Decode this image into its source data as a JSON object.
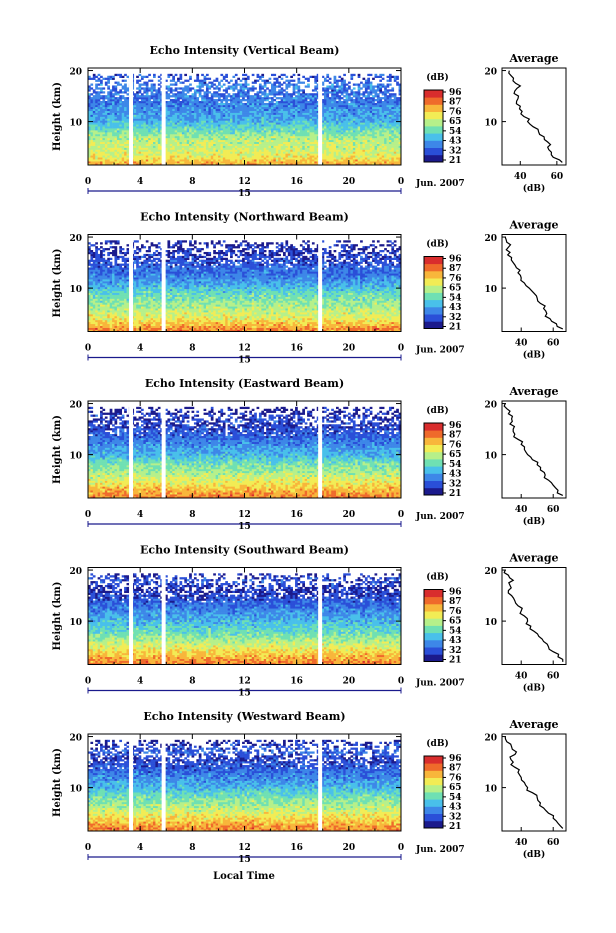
{
  "xlabel": "Local Time",
  "date_label": "Jun. 2007",
  "day_label": "15",
  "colorbar_unit": "(dB)",
  "colorbar_ticks": [
    "96",
    "87",
    "76",
    "65",
    "54",
    "43",
    "32",
    "21"
  ],
  "colormap": [
    "#1b1a8c",
    "#2a4fd8",
    "#3d87e8",
    "#49c0ea",
    "#6fe0b3",
    "#b6f08a",
    "#f2ec55",
    "#f8b63b",
    "#ef6a2b",
    "#d92d2d"
  ],
  "chart_data": [
    {
      "type": "heatmap",
      "title": "Echo Intensity (Vertical Beam)",
      "ylabel": "Height (km)",
      "x_ticks": [
        "0",
        "4",
        "8",
        "12",
        "16",
        "20",
        "0"
      ],
      "y_ticks": [
        "20",
        "10"
      ],
      "xlim": [
        0,
        24
      ],
      "ylim": [
        1.5,
        20.5
      ],
      "clim": [
        21,
        96
      ],
      "data_gaps_hours": [
        3.3,
        5.8,
        17.8
      ],
      "profile": {
        "title": "Average",
        "xlabel": "(dB)",
        "x_ticks": [
          "40",
          "60"
        ],
        "y_ticks": [
          "20",
          "10"
        ],
        "xlim": [
          30,
          65
        ],
        "heights_km": [
          2,
          3,
          4,
          5,
          6,
          7,
          8,
          9,
          10,
          11,
          12,
          13,
          14,
          15,
          16,
          17,
          18,
          19,
          20
        ],
        "values_db": [
          63,
          58,
          57,
          55,
          55,
          53,
          50,
          47,
          44,
          42,
          41,
          40,
          38,
          39,
          37,
          40,
          36,
          35,
          34
        ]
      }
    },
    {
      "type": "heatmap",
      "title": "Echo Intensity (Northward Beam)",
      "ylabel": "Height (km)",
      "x_ticks": [
        "0",
        "4",
        "8",
        "12",
        "16",
        "20",
        "0"
      ],
      "y_ticks": [
        "20",
        "10"
      ],
      "xlim": [
        0,
        24
      ],
      "ylim": [
        1.5,
        20.5
      ],
      "clim": [
        21,
        96
      ],
      "data_gaps_hours": [
        3.3,
        5.8,
        17.8
      ],
      "profile": {
        "title": "Average",
        "xlabel": "(dB)",
        "x_ticks": [
          "40",
          "60"
        ],
        "y_ticks": [
          "20",
          "10"
        ],
        "xlim": [
          28,
          68
        ],
        "heights_km": [
          2,
          3,
          4,
          5,
          6,
          7,
          8,
          9,
          10,
          11,
          12,
          13,
          14,
          15,
          16,
          17,
          18,
          19,
          20
        ],
        "values_db": [
          66,
          62,
          58,
          56,
          54,
          52,
          50,
          48,
          45,
          42,
          40,
          38,
          37,
          35,
          34,
          33,
          32,
          31,
          30
        ]
      }
    },
    {
      "type": "heatmap",
      "title": "Echo Intensity (Eastward Beam)",
      "ylabel": "Height (km)",
      "x_ticks": [
        "0",
        "4",
        "8",
        "12",
        "16",
        "20",
        "0"
      ],
      "y_ticks": [
        "20",
        "10"
      ],
      "xlim": [
        0,
        24
      ],
      "ylim": [
        1.5,
        20.5
      ],
      "clim": [
        21,
        96
      ],
      "data_gaps_hours": [
        3.3,
        5.8,
        17.8
      ],
      "profile": {
        "title": "Average",
        "xlabel": "(dB)",
        "x_ticks": [
          "40",
          "60"
        ],
        "y_ticks": [
          "20",
          "10"
        ],
        "xlim": [
          28,
          68
        ],
        "heights_km": [
          2,
          3,
          4,
          5,
          6,
          7,
          8,
          9,
          10,
          11,
          12,
          13,
          14,
          15,
          16,
          17,
          18,
          19,
          20
        ],
        "values_db": [
          66,
          63,
          60,
          57,
          55,
          52,
          50,
          47,
          44,
          42,
          40,
          38,
          36,
          35,
          33,
          34,
          32,
          31,
          30
        ]
      }
    },
    {
      "type": "heatmap",
      "title": "Echo Intensity (Southward Beam)",
      "ylabel": "Height (km)",
      "x_ticks": [
        "0",
        "4",
        "8",
        "12",
        "16",
        "20",
        "0"
      ],
      "y_ticks": [
        "20",
        "10"
      ],
      "xlim": [
        0,
        24
      ],
      "ylim": [
        1.5,
        20.5
      ],
      "clim": [
        21,
        96
      ],
      "data_gaps_hours": [
        3.3,
        5.8,
        17.8
      ],
      "profile": {
        "title": "Average",
        "xlabel": "(dB)",
        "x_ticks": [
          "40",
          "60"
        ],
        "y_ticks": [
          "20",
          "10"
        ],
        "xlim": [
          28,
          68
        ],
        "heights_km": [
          2,
          3,
          4,
          5,
          6,
          7,
          8,
          9,
          10,
          11,
          12,
          13,
          14,
          15,
          16,
          17,
          18,
          19,
          20
        ],
        "values_db": [
          66,
          63,
          60,
          57,
          54,
          51,
          48,
          46,
          44,
          42,
          40,
          38,
          36,
          34,
          32,
          33,
          35,
          32,
          30
        ]
      }
    },
    {
      "type": "heatmap",
      "title": "Echo Intensity (Westward Beam)",
      "ylabel": "Height (km)",
      "x_ticks": [
        "0",
        "4",
        "8",
        "12",
        "16",
        "20",
        "0"
      ],
      "y_ticks": [
        "20",
        "10"
      ],
      "xlim": [
        0,
        24
      ],
      "ylim": [
        1.5,
        20.5
      ],
      "clim": [
        21,
        96
      ],
      "data_gaps_hours": [
        3.3,
        5.8,
        17.8
      ],
      "profile": {
        "title": "Average",
        "xlabel": "(dB)",
        "x_ticks": [
          "40",
          "60"
        ],
        "y_ticks": [
          "20",
          "10"
        ],
        "xlim": [
          28,
          68
        ],
        "heights_km": [
          2,
          3,
          4,
          5,
          6,
          7,
          8,
          9,
          10,
          11,
          12,
          13,
          14,
          15,
          16,
          17,
          18,
          19,
          20
        ],
        "values_db": [
          66,
          63,
          60,
          57,
          54,
          52,
          50,
          47,
          44,
          42,
          40,
          38,
          36,
          35,
          33,
          37,
          34,
          31,
          30
        ]
      }
    }
  ]
}
